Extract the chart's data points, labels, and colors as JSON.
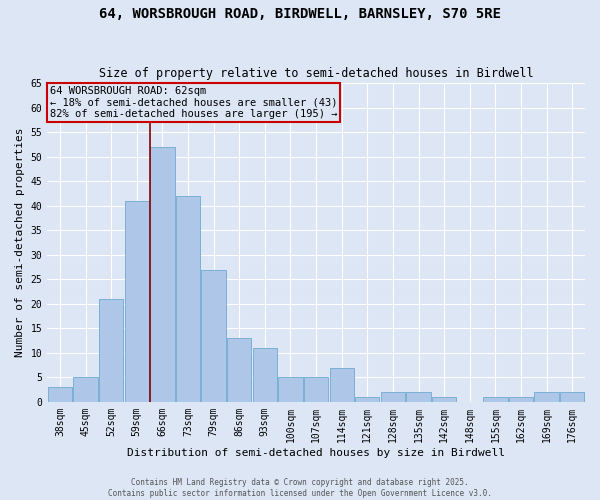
{
  "title": "64, WORSBROUGH ROAD, BIRDWELL, BARNSLEY, S70 5RE",
  "subtitle": "Size of property relative to semi-detached houses in Birdwell",
  "xlabel": "Distribution of semi-detached houses by size in Birdwell",
  "ylabel": "Number of semi-detached properties",
  "categories": [
    "38sqm",
    "45sqm",
    "52sqm",
    "59sqm",
    "66sqm",
    "73sqm",
    "79sqm",
    "86sqm",
    "93sqm",
    "100sqm",
    "107sqm",
    "114sqm",
    "121sqm",
    "128sqm",
    "135sqm",
    "142sqm",
    "148sqm",
    "155sqm",
    "162sqm",
    "169sqm",
    "176sqm"
  ],
  "values": [
    3,
    5,
    21,
    41,
    52,
    42,
    27,
    13,
    11,
    5,
    5,
    7,
    1,
    2,
    2,
    1,
    0,
    1,
    1,
    2,
    2
  ],
  "bar_color": "#aec6e8",
  "bar_edge_color": "#7aafd4",
  "subject_label": "64 WORSBROUGH ROAD: 62sqm",
  "pct_smaller": 18,
  "pct_larger": 82,
  "n_smaller": 43,
  "n_larger": 195,
  "vline_color": "#8b0000",
  "annotation_box_color": "#cc0000",
  "bg_color": "#dce6f5",
  "grid_color": "#ffffff",
  "ylim": [
    0,
    65
  ],
  "yticks": [
    0,
    5,
    10,
    15,
    20,
    25,
    30,
    35,
    40,
    45,
    50,
    55,
    60,
    65
  ],
  "footer_line1": "Contains HM Land Registry data © Crown copyright and database right 2025.",
  "footer_line2": "Contains public sector information licensed under the Open Government Licence v3.0.",
  "title_fontsize": 10,
  "subtitle_fontsize": 8.5,
  "annotation_fontsize": 7.5,
  "ylabel_fontsize": 8,
  "xlabel_fontsize": 8,
  "tick_fontsize": 7,
  "footer_fontsize": 5.5,
  "vline_x_index": 3.5
}
